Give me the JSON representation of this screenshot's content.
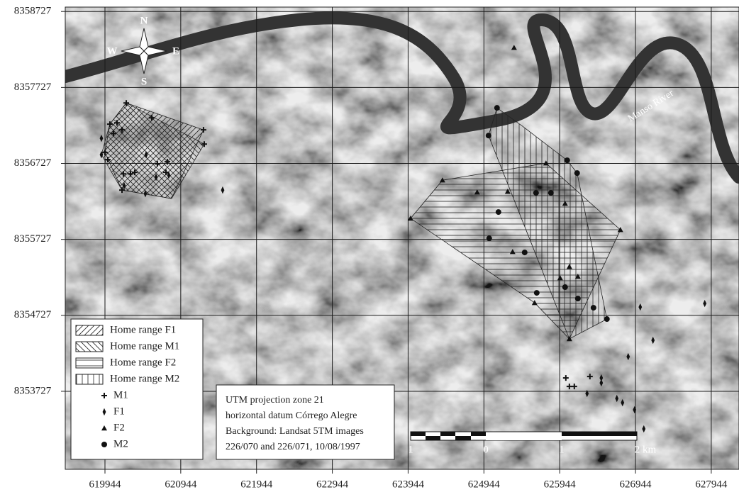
{
  "chart_data": {
    "type": "scatter",
    "xlim": [
      619420,
      628310
    ],
    "ylim": [
      8352700,
      8358785
    ],
    "xticks": [
      619944,
      620944,
      621944,
      622944,
      623944,
      624944,
      625944,
      626944,
      627944
    ],
    "yticks": [
      8353727,
      8354727,
      8355727,
      8356727,
      8357727,
      8358727
    ],
    "grid": true,
    "legend": "lower-left",
    "home_ranges": [
      {
        "name": "Home range F1",
        "hatch": "diagonal-up",
        "color": "#222222",
        "x": [
          620225,
          621244,
          620823,
          620169,
          619897,
          620009
        ],
        "y": [
          8357523,
          8357169,
          8356264,
          8356376,
          8356842,
          8357244
        ]
      },
      {
        "name": "Home range M1",
        "hatch": "diagonal-down",
        "color": "#222222",
        "x": [
          620225,
          621254,
          620823,
          620169,
          619944,
          620009
        ],
        "y": [
          8357523,
          8356982,
          8356264,
          8356376,
          8356870,
          8357244
        ]
      },
      {
        "name": "Home range F2",
        "hatch": "horizontal",
        "color": "#222222",
        "x": [
          624397,
          625763,
          626745,
          626072,
          625613,
          623976
        ],
        "y": [
          8356506,
          8356730,
          8355853,
          8354417,
          8354892,
          8356003
        ]
      },
      {
        "name": "Home range M2",
        "hatch": "vertical",
        "color": "#222222",
        "x": [
          625117,
          625454,
          626043,
          626174,
          626567,
          626072,
          625005
        ],
        "y": [
          8357458,
          8357216,
          8356768,
          8356600,
          8354678,
          8354417,
          8357094
        ]
      }
    ],
    "series": [
      {
        "name": "M1",
        "marker": "plus",
        "color": "#111111",
        "x": [
          620225,
          620009,
          620103,
          620056,
          620169,
          620561,
          621244,
          621254,
          619944,
          619981,
          620187,
          620281,
          620337,
          620636,
          620767,
          620749,
          620169,
          626025,
          626072,
          626137,
          626343
        ],
        "y": [
          8357523,
          8357244,
          8357262,
          8357122,
          8357169,
          8357327,
          8357169,
          8356982,
          8356870,
          8356777,
          8356590,
          8356590,
          8356609,
          8356721,
          8356749,
          8356609,
          8356376,
          8353903,
          8353791,
          8353791,
          8353922
        ]
      },
      {
        "name": "F1",
        "marker": "diamond",
        "color": "#111111",
        "x": [
          619897,
          619897,
          620487,
          620197,
          620477,
          620618,
          620786,
          621497,
          627007,
          627175,
          626848,
          626493,
          626493,
          626305,
          626698,
          626773,
          626932,
          627054,
          627858
        ],
        "y": [
          8357057,
          8356842,
          8356842,
          8356432,
          8356329,
          8356544,
          8356572,
          8356376,
          8354836,
          8354398,
          8354183,
          8353903,
          8353838,
          8353698,
          8353633,
          8353577,
          8353484,
          8353232,
          8354883
        ]
      },
      {
        "name": "F2",
        "marker": "triangle",
        "color": "#111111",
        "x": [
          625342,
          624397,
          624855,
          625258,
          625763,
          623976,
          626015,
          626745,
          625323,
          626072,
          625613,
          626072,
          626184,
          625950
        ],
        "y": [
          8358251,
          8356506,
          8356348,
          8356357,
          8356730,
          8356003,
          8356199,
          8355853,
          8355564,
          8355368,
          8354892,
          8354417,
          8355238,
          8355219
        ]
      },
      {
        "name": "M2",
        "marker": "circle",
        "color": "#111111",
        "x": [
          625117,
          625005,
          626043,
          626174,
          625136,
          625632,
          625828,
          625014,
          625482,
          626015,
          625641,
          626184,
          626390,
          626567
        ],
        "y": [
          8357458,
          8357094,
          8356768,
          8356600,
          8356087,
          8356339,
          8356339,
          8355741,
          8355555,
          8355098,
          8355023,
          8354948,
          8354827,
          8354678
        ]
      }
    ],
    "annotations": {
      "compass": [
        "N",
        "S",
        "W",
        "E"
      ],
      "river": "Manso River",
      "info": [
        "UTM projection zone 21",
        "horizontal datum Córrego Alegre",
        "Background: Landsat 5TM images",
        "226/070 and 226/071, 10/08/1997"
      ],
      "scale_labels": [
        "1",
        "0",
        "1",
        "2 km"
      ]
    }
  }
}
